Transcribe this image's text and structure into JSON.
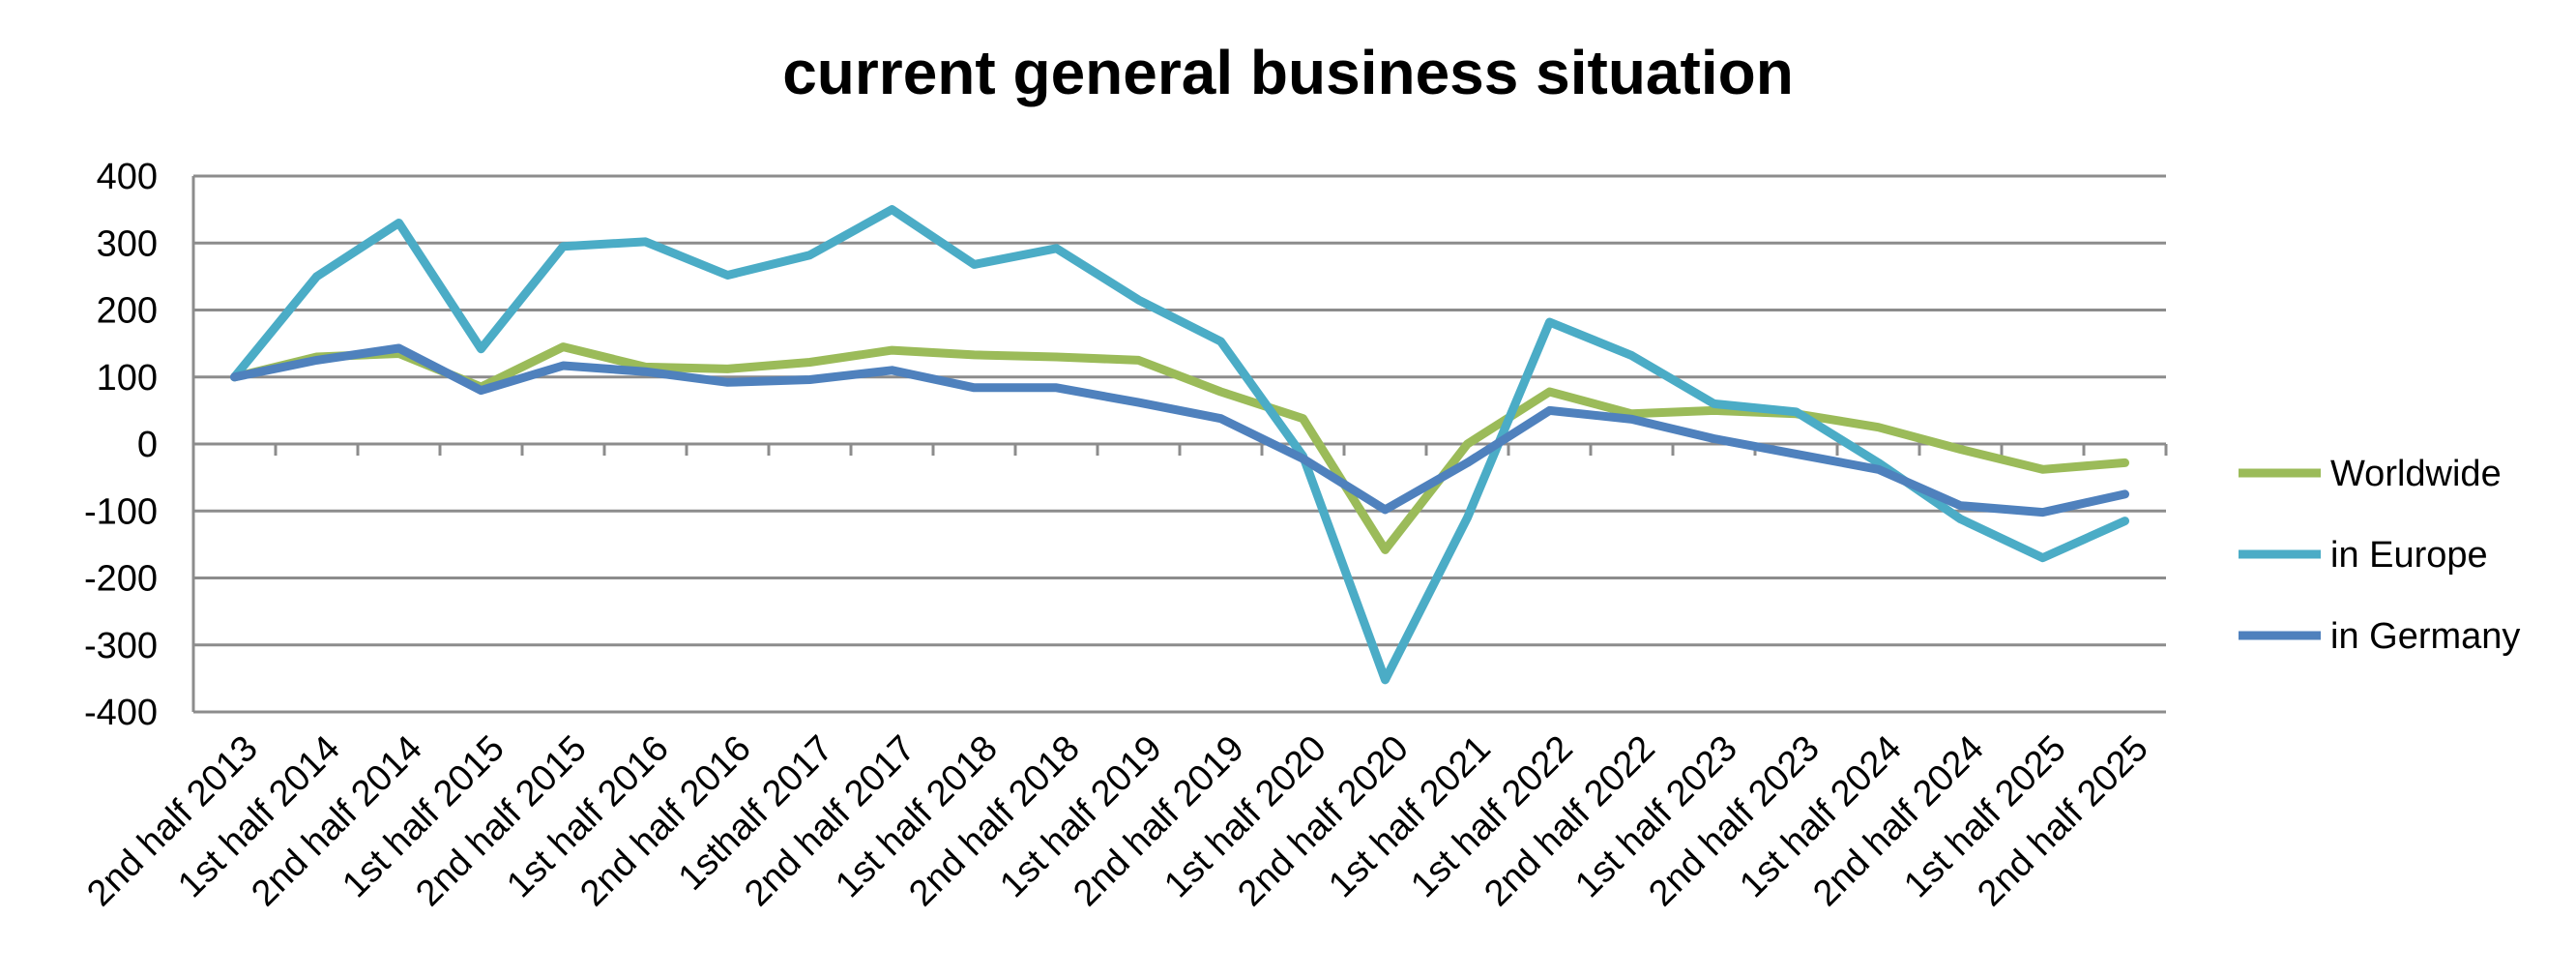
{
  "chart_data": {
    "type": "line",
    "title": "current general business situation",
    "xlabel": "",
    "ylabel": "",
    "ylim": [
      -400,
      400
    ],
    "yticks": [
      400,
      300,
      200,
      100,
      0,
      -100,
      -200,
      -300,
      -400
    ],
    "ytick_labels": [
      "400",
      "300",
      "200",
      "100",
      "0",
      "-100",
      "-200",
      "-300",
      "-400"
    ],
    "grid": true,
    "legend_position": "right",
    "categories": [
      "2nd  half 2013",
      "1st half 2014",
      "2nd half 2014",
      "1st half 2015",
      "2nd half 2015",
      "1st half 2016",
      "2nd half 2016",
      "1sthalf 2017",
      "2nd half 2017",
      "1st half 2018",
      "2nd half 2018",
      "1st half 2019",
      "2nd half 2019",
      "1st half 2020",
      "2nd half 2020",
      "1st half 2021",
      "1st half 2022",
      "2nd half 2022",
      "1st half 2023",
      "2nd half 2023",
      "1st half 2024",
      "2nd half 2024",
      "1st half 2025",
      "2nd half 2025"
    ],
    "series": [
      {
        "name": "Worldwide",
        "color": "#9BBB59",
        "values": [
          100,
          130,
          135,
          85,
          145,
          115,
          112,
          122,
          140,
          133,
          130,
          125,
          78,
          38,
          -158,
          0,
          78,
          45,
          50,
          45,
          25,
          -8,
          -38,
          -28
        ]
      },
      {
        "name": "in Europe",
        "color": "#4BACC6",
        "values": [
          100,
          250,
          330,
          142,
          295,
          302,
          252,
          282,
          350,
          268,
          292,
          215,
          153,
          -18,
          -352,
          -110,
          182,
          132,
          60,
          48,
          -28,
          -112,
          -170,
          -115
        ]
      },
      {
        "name": "in Germany",
        "color": "#4F81BD",
        "values": [
          100,
          125,
          143,
          80,
          117,
          108,
          92,
          96,
          110,
          84,
          84,
          62,
          38,
          -22,
          -98,
          -28,
          50,
          37,
          8,
          -15,
          -38,
          -92,
          -102,
          -75
        ]
      }
    ]
  }
}
